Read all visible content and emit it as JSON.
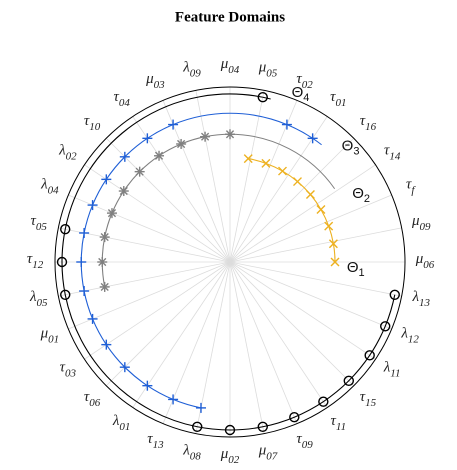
{
  "chart_data": {
    "type": "polar",
    "title": "Feature Domains",
    "rlim": [
      0,
      1
    ],
    "theta_labels": [
      "μ06",
      "μ09",
      "τf",
      "τ14",
      "τ16",
      "τ01",
      "τ02",
      "μ05",
      "μ04",
      "λ09",
      "μ03",
      "τ04",
      "τ10",
      "λ02",
      "λ04",
      "τ05",
      "τ12",
      "λ05",
      "μ01",
      "τ03",
      "τ06",
      "λ01",
      "τ13",
      "λ08",
      "μ02",
      "μ07",
      "τ09",
      "τ11",
      "τ15",
      "λ11",
      "λ12",
      "λ13"
    ],
    "grid": true,
    "series": [
      {
        "name": "Θ1",
        "color": "#EDB120",
        "marker": "x",
        "x": [
          0,
          10,
          20,
          30,
          40,
          50,
          60,
          70,
          80
        ],
        "values": [
          0.6,
          0.6,
          0.6,
          0.6,
          0.6,
          0.6,
          0.6,
          0.6,
          0.6
        ]
      },
      {
        "name": "Θ2",
        "color": "#808080",
        "marker": "*",
        "x": [
          90,
          101.25,
          112.5,
          123.75,
          135,
          146.25,
          157.5,
          168.75,
          180,
          191.25
        ],
        "values": [
          0.73,
          0.73,
          0.73,
          0.73,
          0.73,
          0.73,
          0.73,
          0.73,
          0.73,
          0.73
        ]
      },
      {
        "name": "Θ3",
        "color": "#1F5FD6",
        "marker": "+",
        "x": [
          56.25,
          67.5,
          112.5,
          123.75,
          135,
          146.25,
          157.5,
          168.75,
          180,
          191.25,
          202.5,
          213.75,
          225,
          236.25,
          247.5,
          258.75
        ],
        "values": [
          0.85,
          0.85,
          0.85,
          0.85,
          0.85,
          0.85,
          0.85,
          0.85,
          0.85,
          0.85,
          0.85,
          0.85,
          0.85,
          0.85,
          0.85,
          0.85
        ]
      },
      {
        "name": "Θ4",
        "color": "#000000",
        "marker": "o",
        "x": [
          78.75,
          168.75,
          180,
          191.25,
          258.75,
          270,
          281.25,
          292.5,
          303.75,
          315,
          326.25,
          337.5,
          348.75
        ],
        "values": [
          0.96,
          0.96,
          0.96,
          0.96,
          0.96,
          0.96,
          0.96,
          0.96,
          0.96,
          0.96,
          0.96,
          0.96,
          0.96
        ]
      }
    ]
  }
}
